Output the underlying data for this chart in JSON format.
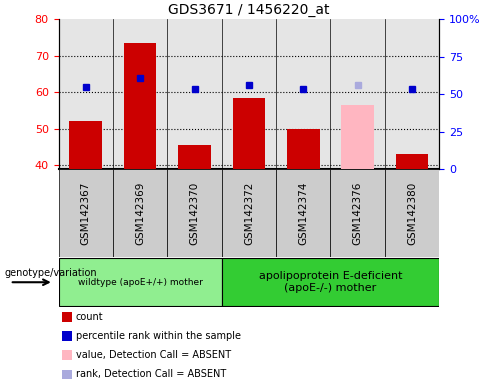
{
  "title": "GDS3671 / 1456220_at",
  "categories": [
    "GSM142367",
    "GSM142369",
    "GSM142370",
    "GSM142372",
    "GSM142374",
    "GSM142376",
    "GSM142380"
  ],
  "bar_values": [
    52,
    73.5,
    45.5,
    58.5,
    50,
    0,
    43
  ],
  "bar_absent_values": [
    0,
    0,
    0,
    0,
    0,
    56.5,
    0
  ],
  "percentile_values": [
    61.5,
    64,
    61,
    62,
    61,
    0,
    61
  ],
  "percentile_absent_values": [
    0,
    0,
    0,
    0,
    0,
    62,
    0
  ],
  "bar_color": "#CC0000",
  "bar_absent_color": "#FFB6C1",
  "percentile_color": "#0000CC",
  "percentile_absent_color": "#AAAADD",
  "ylim_left": [
    39,
    80
  ],
  "ylim_right": [
    0,
    100
  ],
  "yticks_left": [
    40,
    50,
    60,
    70,
    80
  ],
  "yticks_right": [
    0,
    25,
    50,
    75,
    100
  ],
  "ytick_labels_right": [
    "0",
    "25",
    "50",
    "75",
    "100%"
  ],
  "group1_indices": [
    0,
    1,
    2
  ],
  "group2_indices": [
    3,
    4,
    5,
    6
  ],
  "group1_label": "wildtype (apoE+/+) mother",
  "group2_label": "apolipoprotein E-deficient\n(apoE-/-) mother",
  "group1_bg": "#90EE90",
  "group2_bg": "#33CC33",
  "sample_bg": "#CCCCCC",
  "legend_items": [
    {
      "color": "#CC0000",
      "label": "count"
    },
    {
      "color": "#0000CC",
      "label": "percentile rank within the sample"
    },
    {
      "color": "#FFB6C1",
      "label": "value, Detection Call = ABSENT"
    },
    {
      "color": "#AAAADD",
      "label": "rank, Detection Call = ABSENT"
    }
  ],
  "genotype_label": "genotype/variation",
  "bar_width": 0.6,
  "percentile_marker_size": 5,
  "baseline": 39
}
